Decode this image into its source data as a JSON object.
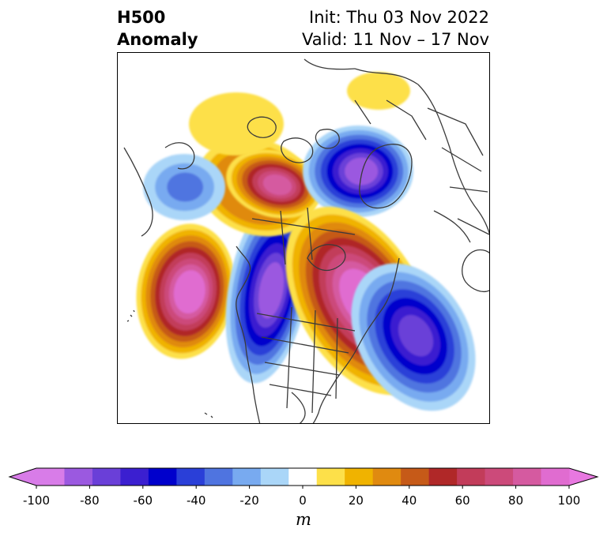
{
  "title": {
    "left_line1": "H500",
    "left_line2": "Anomaly",
    "right_line1": "Init: Thu 03 Nov 2022",
    "right_line2": "Valid: 11 Nov – 17 Nov"
  },
  "colorbar": {
    "unit": "m",
    "tick_labels": [
      "-100",
      "-80",
      "-60",
      "-40",
      "-20",
      "0",
      "20",
      "40",
      "60",
      "80",
      "100"
    ],
    "levels": [
      -100,
      -90,
      -80,
      -70,
      -60,
      -50,
      -40,
      -30,
      -20,
      -10,
      10,
      20,
      30,
      40,
      50,
      60,
      70,
      80,
      90,
      100
    ],
    "colors": [
      "#d87ce8",
      "#9b59e0",
      "#6a3fd8",
      "#3b1fd0",
      "#0000cc",
      "#2a3fd8",
      "#4f74e0",
      "#78aaf0",
      "#aad6f8",
      "#ffffff",
      "#fde049",
      "#f0b300",
      "#e08a10",
      "#c65a18",
      "#b02828",
      "#c23c5a",
      "#cc4a7a",
      "#d55aa0",
      "#e06cd0"
    ],
    "extend_min_color": "#d87ce8",
    "extend_max_color": "#e878e0"
  },
  "map": {
    "projection": "polar stereographic (north)",
    "region": "North America and North Pacific"
  }
}
